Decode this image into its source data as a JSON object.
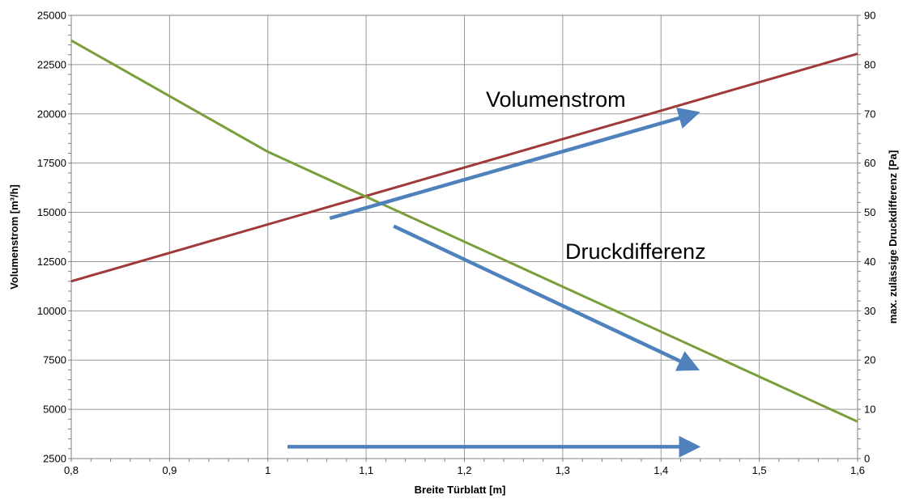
{
  "chart_data": {
    "type": "line",
    "x": [
      0.8,
      1.6
    ],
    "xlabel": "Breite Türblatt [m]",
    "ylabel_left": "Volumenstrom [m³/h]",
    "ylabel_right": "max. zulässige Druckdifferenz [Pa]",
    "xlim": [
      0.8,
      1.6
    ],
    "ylim_left": [
      2500,
      25000
    ],
    "ylim_right": [
      0,
      90
    ],
    "x_ticks": [
      "0,8",
      "0,9",
      "1",
      "1,1",
      "1,2",
      "1,3",
      "1,4",
      "1,5",
      "1,6"
    ],
    "y_left_ticks": [
      "2500",
      "5000",
      "7500",
      "10000",
      "12500",
      "15000",
      "17500",
      "20000",
      "22500",
      "25000"
    ],
    "y_right_ticks": [
      "0",
      "10",
      "20",
      "30",
      "40",
      "50",
      "60",
      "70",
      "80",
      "90"
    ],
    "grid": true,
    "series": [
      {
        "axis": "left",
        "color": "#a0393a",
        "x": [
          0.8,
          1.6
        ],
        "values": [
          11500,
          23050
        ]
      },
      {
        "axis": "right",
        "color": "#7a9e3a",
        "x": [
          0.8,
          1.0,
          1.6
        ],
        "values": [
          84.9,
          62.3,
          7.5
        ]
      }
    ],
    "annotations": [
      {
        "text": "Volumenstrom"
      },
      {
        "text": "Druckdifferenz"
      }
    ],
    "arrows": [
      {
        "color": "#4f81bd",
        "from": [
          1.063,
          14700
        ],
        "to": [
          1.43,
          19950
        ]
      },
      {
        "color": "#4f81bd",
        "from": [
          1.128,
          14300
        ],
        "to": [
          1.43,
          7200
        ]
      },
      {
        "color": "#4f81bd",
        "from": [
          1.02,
          3100
        ],
        "to": [
          1.43,
          3100
        ]
      }
    ]
  }
}
